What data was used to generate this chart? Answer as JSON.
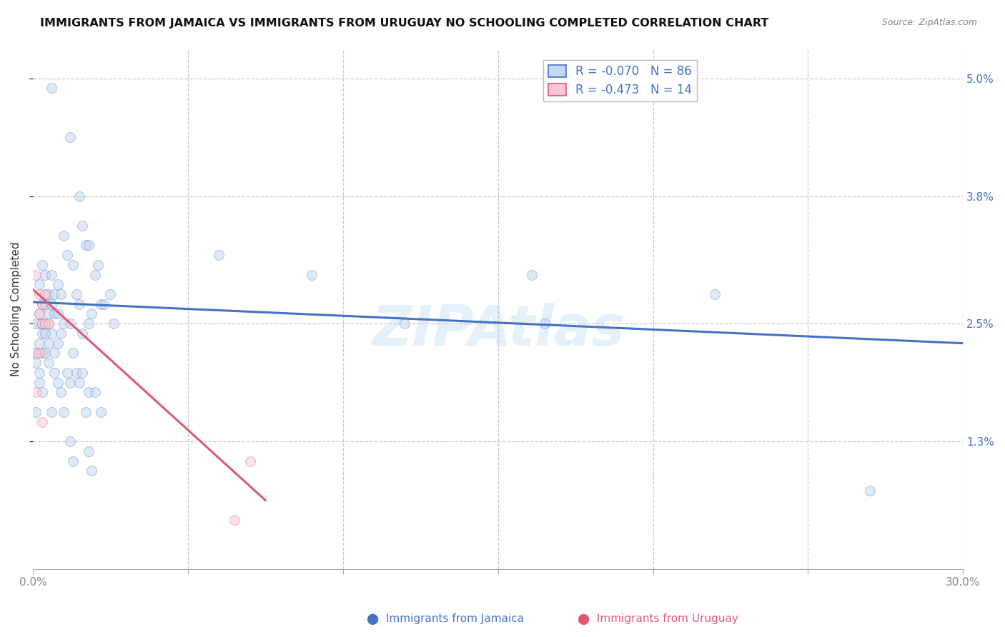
{
  "title": "IMMIGRANTS FROM JAMAICA VS IMMIGRANTS FROM URUGUAY NO SCHOOLING COMPLETED CORRELATION CHART",
  "source": "Source: ZipAtlas.com",
  "ylabel": "No Schooling Completed",
  "xlim": [
    0.0,
    0.3
  ],
  "ylim": [
    0.0,
    0.053
  ],
  "yticks_right": [
    0.013,
    0.025,
    0.038,
    0.05
  ],
  "ytick_labels_right": [
    "1.3%",
    "2.5%",
    "3.8%",
    "5.0%"
  ],
  "grid_color": "#c8c8c8",
  "background_color": "#ffffff",
  "jamaica_fill_color": "#c5d8f0",
  "jamaica_edge_color": "#4472c4",
  "uruguay_fill_color": "#f9c8d4",
  "uruguay_edge_color": "#e05878",
  "R_jamaica": -0.07,
  "N_jamaica": 86,
  "R_uruguay": -0.473,
  "N_uruguay": 14,
  "jamaica_scatter": [
    [
      0.006,
      0.049
    ],
    [
      0.012,
      0.044
    ],
    [
      0.015,
      0.038
    ],
    [
      0.016,
      0.035
    ],
    [
      0.017,
      0.033
    ],
    [
      0.018,
      0.033
    ],
    [
      0.003,
      0.031
    ],
    [
      0.004,
      0.03
    ],
    [
      0.006,
      0.03
    ],
    [
      0.008,
      0.029
    ],
    [
      0.01,
      0.034
    ],
    [
      0.011,
      0.032
    ],
    [
      0.013,
      0.031
    ],
    [
      0.02,
      0.03
    ],
    [
      0.021,
      0.031
    ],
    [
      0.002,
      0.029
    ],
    [
      0.004,
      0.028
    ],
    [
      0.005,
      0.028
    ],
    [
      0.007,
      0.028
    ],
    [
      0.009,
      0.028
    ],
    [
      0.014,
      0.028
    ],
    [
      0.025,
      0.028
    ],
    [
      0.003,
      0.027
    ],
    [
      0.004,
      0.027
    ],
    [
      0.006,
      0.027
    ],
    [
      0.015,
      0.027
    ],
    [
      0.022,
      0.027
    ],
    [
      0.002,
      0.026
    ],
    [
      0.005,
      0.026
    ],
    [
      0.007,
      0.026
    ],
    [
      0.008,
      0.026
    ],
    [
      0.019,
      0.026
    ],
    [
      0.023,
      0.027
    ],
    [
      0.002,
      0.025
    ],
    [
      0.003,
      0.025
    ],
    [
      0.004,
      0.025
    ],
    [
      0.005,
      0.025
    ],
    [
      0.01,
      0.025
    ],
    [
      0.012,
      0.025
    ],
    [
      0.018,
      0.025
    ],
    [
      0.026,
      0.025
    ],
    [
      0.001,
      0.025
    ],
    [
      0.003,
      0.024
    ],
    [
      0.006,
      0.024
    ],
    [
      0.009,
      0.024
    ],
    [
      0.004,
      0.024
    ],
    [
      0.002,
      0.023
    ],
    [
      0.005,
      0.023
    ],
    [
      0.008,
      0.023
    ],
    [
      0.016,
      0.024
    ],
    [
      0.001,
      0.022
    ],
    [
      0.003,
      0.022
    ],
    [
      0.004,
      0.022
    ],
    [
      0.007,
      0.022
    ],
    [
      0.013,
      0.022
    ],
    [
      0.001,
      0.021
    ],
    [
      0.005,
      0.021
    ],
    [
      0.002,
      0.02
    ],
    [
      0.007,
      0.02
    ],
    [
      0.011,
      0.02
    ],
    [
      0.014,
      0.02
    ],
    [
      0.016,
      0.02
    ],
    [
      0.002,
      0.019
    ],
    [
      0.008,
      0.019
    ],
    [
      0.012,
      0.019
    ],
    [
      0.015,
      0.019
    ],
    [
      0.003,
      0.018
    ],
    [
      0.009,
      0.018
    ],
    [
      0.018,
      0.018
    ],
    [
      0.02,
      0.018
    ],
    [
      0.001,
      0.016
    ],
    [
      0.006,
      0.016
    ],
    [
      0.01,
      0.016
    ],
    [
      0.017,
      0.016
    ],
    [
      0.022,
      0.016
    ],
    [
      0.012,
      0.013
    ],
    [
      0.018,
      0.012
    ],
    [
      0.013,
      0.011
    ],
    [
      0.019,
      0.01
    ],
    [
      0.161,
      0.03
    ],
    [
      0.165,
      0.025
    ],
    [
      0.27,
      0.008
    ],
    [
      0.22,
      0.028
    ],
    [
      0.09,
      0.03
    ],
    [
      0.12,
      0.025
    ],
    [
      0.06,
      0.032
    ]
  ],
  "uruguay_scatter": [
    [
      0.001,
      0.03
    ],
    [
      0.002,
      0.028
    ],
    [
      0.002,
      0.026
    ],
    [
      0.003,
      0.027
    ],
    [
      0.003,
      0.025
    ],
    [
      0.004,
      0.028
    ],
    [
      0.004,
      0.025
    ],
    [
      0.005,
      0.025
    ],
    [
      0.001,
      0.022
    ],
    [
      0.002,
      0.022
    ],
    [
      0.001,
      0.018
    ],
    [
      0.003,
      0.015
    ],
    [
      0.07,
      0.011
    ],
    [
      0.065,
      0.005
    ]
  ],
  "jamaica_trend_x": [
    0.0,
    0.3
  ],
  "jamaica_trend_y": [
    0.0272,
    0.023
  ],
  "uruguay_trend_x": [
    0.0,
    0.075
  ],
  "uruguay_trend_y": [
    0.0285,
    0.007
  ],
  "watermark": "ZIPAtlas",
  "marker_size": 100,
  "marker_alpha": 0.55,
  "title_fontsize": 11.5,
  "axis_label_fontsize": 11,
  "tick_fontsize": 11,
  "legend_fontsize": 12
}
